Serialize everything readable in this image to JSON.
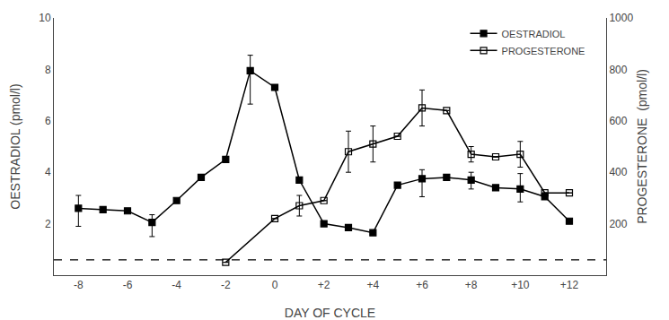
{
  "chart_data": {
    "type": "line",
    "x_label": "DAY OF CYCLE",
    "y_label": "OESTRADIOL (pmol/l)",
    "y2_label": "PROGESTERONE  (pmol/l)",
    "series": [
      {
        "name": "OESTRADIOL",
        "color": "#000000",
        "marker": "square",
        "line_style": "solid",
        "axis": "y",
        "x": [
          -8,
          -7,
          -6,
          -5,
          -4,
          -3,
          -2,
          -1,
          0,
          1,
          2,
          3,
          4,
          5,
          6,
          7,
          8,
          9,
          10,
          11,
          12
        ],
        "values": [
          2.6,
          2.55,
          2.5,
          2.05,
          2.9,
          3.8,
          4.5,
          7.95,
          7.3,
          3.7,
          2.0,
          1.85,
          1.65,
          3.5,
          3.75,
          3.8,
          3.7,
          3.4,
          3.35,
          3.05,
          2.1
        ],
        "error_minus": [
          0.7,
          0.0,
          0.0,
          0.55,
          0.0,
          0.0,
          0.0,
          1.3,
          0.0,
          0.0,
          0.0,
          0.0,
          0.0,
          0.0,
          0.7,
          0.0,
          0.35,
          0.0,
          0.5,
          0.0,
          0.0
        ],
        "error_plus": [
          0.5,
          0.0,
          0.0,
          0.3,
          0.0,
          0.0,
          0.0,
          0.6,
          0.0,
          0.0,
          0.0,
          0.0,
          0.0,
          0.0,
          0.35,
          0.0,
          0.3,
          0.0,
          0.6,
          0.0,
          0.0
        ]
      },
      {
        "name": "PROGESTERONE",
        "color": "#000000",
        "marker": "square-open",
        "line_style": "solid",
        "axis": "y2",
        "x": [
          -2,
          0,
          1,
          2,
          3,
          4,
          5,
          6,
          7,
          8,
          9,
          10,
          11,
          12
        ],
        "values": [
          50,
          220,
          270,
          290,
          480,
          510,
          540,
          650,
          640,
          470,
          460,
          470,
          320,
          320
        ],
        "error_minus": [
          0,
          0,
          40,
          0,
          80,
          70,
          0,
          70,
          0,
          30,
          0,
          50,
          0,
          0
        ],
        "error_plus": [
          0,
          0,
          40,
          0,
          80,
          70,
          0,
          70,
          0,
          30,
          0,
          50,
          0,
          0
        ]
      }
    ],
    "reference_lines": [
      {
        "y": 0.6,
        "axis": "y",
        "color": "#000000",
        "line_style": "dashed"
      }
    ],
    "xlim": [
      -9.0,
      13.5
    ],
    "xticks": [
      -8,
      -6,
      -4,
      -2,
      0,
      {
        "value": 2,
        "label": "+2"
      },
      {
        "value": 4,
        "label": "+4"
      },
      {
        "value": 6,
        "label": "+6"
      },
      {
        "value": 8,
        "label": "+8"
      },
      {
        "value": 10,
        "label": "+10"
      },
      {
        "value": 12,
        "label": "+12"
      }
    ],
    "ylim": [
      0.0,
      10.0
    ],
    "yticks": [
      2,
      4,
      6,
      8,
      10
    ],
    "y2lim": [
      0,
      1000
    ],
    "y2ticks": [
      200,
      400,
      600,
      800,
      1000
    ],
    "grid": false,
    "legend": "upper right"
  }
}
